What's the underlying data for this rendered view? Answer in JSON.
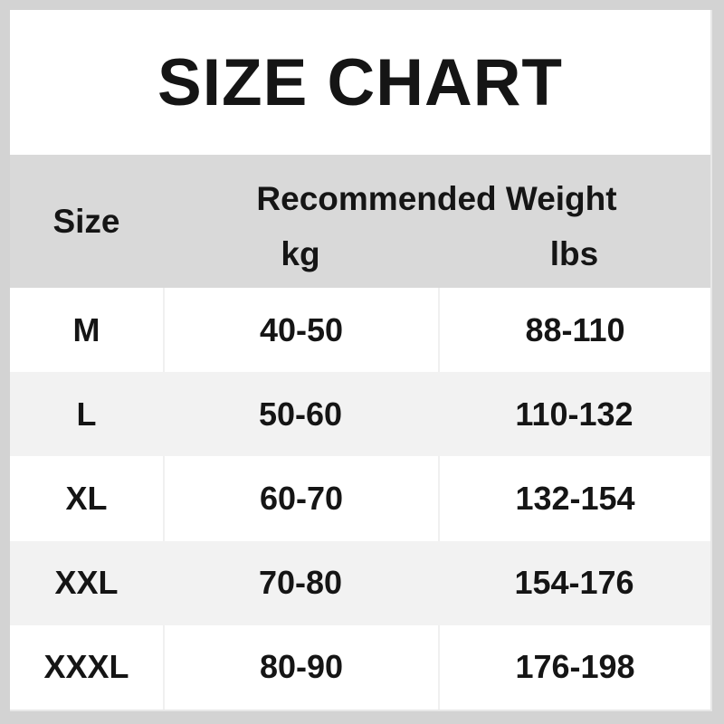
{
  "title": "SIZE CHART",
  "table": {
    "size_header": "Size",
    "group_header": "Recommended Weight",
    "unit_kg": "kg",
    "unit_lbs": "lbs",
    "rows": [
      {
        "size": "M",
        "kg": "40-50",
        "lbs": "88-110"
      },
      {
        "size": "L",
        "kg": "50-60",
        "lbs": "110-132"
      },
      {
        "size": "XL",
        "kg": "60-70",
        "lbs": "132-154"
      },
      {
        "size": "XXL",
        "kg": "70-80",
        "lbs": "154-176"
      },
      {
        "size": "XXXL",
        "kg": "80-90",
        "lbs": "176-198"
      }
    ]
  },
  "chart_data": {
    "type": "table",
    "title": "SIZE CHART",
    "column_group": "Recommended Weight",
    "columns": [
      "Size",
      "kg",
      "lbs"
    ],
    "rows": [
      [
        "M",
        "40-50",
        "88-110"
      ],
      [
        "L",
        "50-60",
        "110-132"
      ],
      [
        "XL",
        "60-70",
        "132-154"
      ],
      [
        "XXL",
        "70-80",
        "154-176"
      ],
      [
        "XXXL",
        "80-90",
        "176-198"
      ]
    ]
  },
  "colors": {
    "frame": "#d3d3d3",
    "header_bg": "#d9d9d9",
    "row_bg": "#ffffff",
    "row_alt_bg": "#f2f2f2",
    "separator": "#f0f0f0",
    "inner_edge": "#e8e8e8",
    "text": "#151515"
  }
}
